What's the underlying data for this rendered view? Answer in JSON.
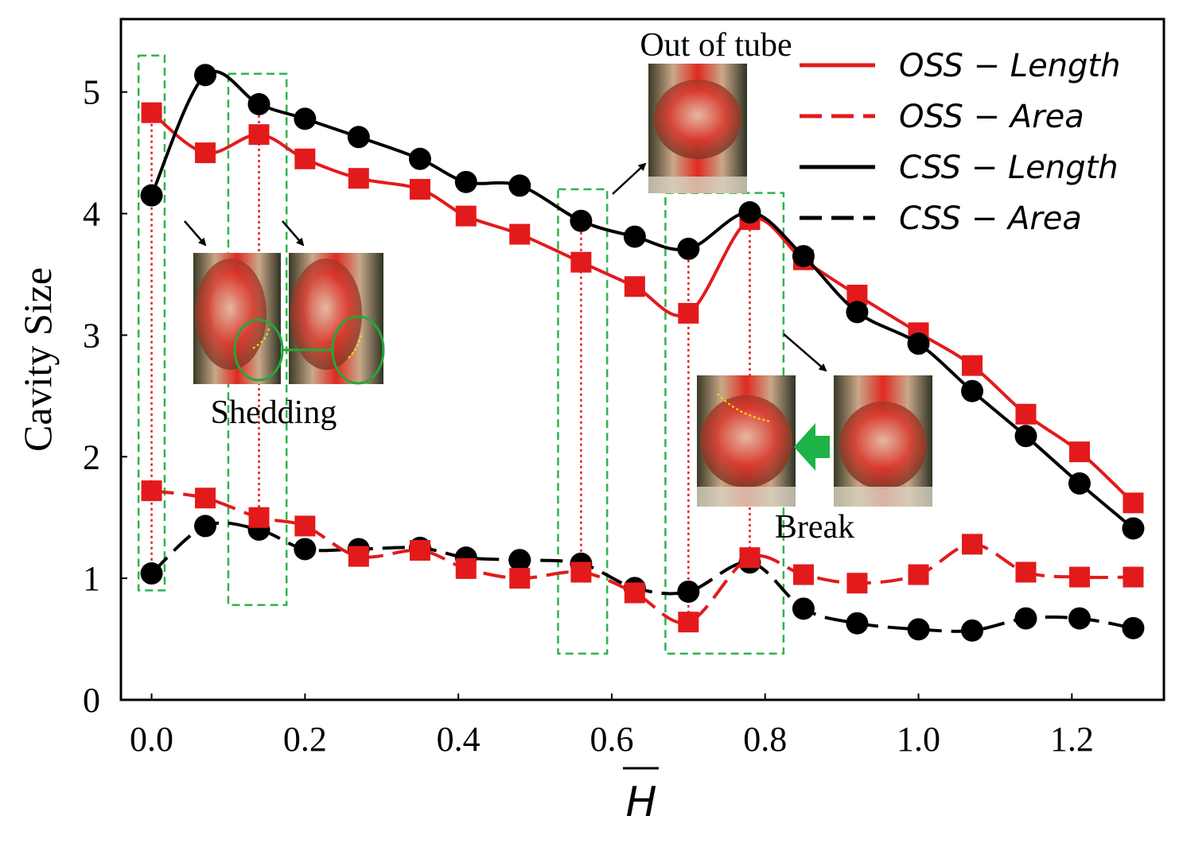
{
  "chart_data": {
    "type": "line",
    "title": "",
    "xlabel": "H",
    "ylabel": "Cavity Size",
    "xlim": [
      -0.04,
      1.32
    ],
    "ylim": [
      0,
      5.6
    ],
    "x_ticks": [
      0.0,
      0.2,
      0.4,
      0.6,
      0.8,
      1.0,
      1.2
    ],
    "x_tick_labels": [
      "0.0",
      "0.2",
      "0.4",
      "0.6",
      "0.8",
      "1.0",
      "1.2"
    ],
    "y_ticks": [
      0,
      1,
      2,
      3,
      4,
      5
    ],
    "y_tick_labels": [
      "0",
      "1",
      "2",
      "3",
      "4",
      "5"
    ],
    "grid": false,
    "legend_position": "top-right",
    "x": [
      0.0,
      0.07,
      0.14,
      0.2,
      0.27,
      0.35,
      0.41,
      0.48,
      0.56,
      0.63,
      0.7,
      0.78,
      0.85,
      0.92,
      1.0,
      1.07,
      1.14,
      1.21,
      1.28
    ],
    "series": [
      {
        "name": "OSS – Length",
        "label": "OSS − Length",
        "color": "#e31a1c",
        "style": "solid",
        "marker": "square",
        "values": [
          4.83,
          4.5,
          4.65,
          4.45,
          4.29,
          4.2,
          3.98,
          3.83,
          3.6,
          3.4,
          3.18,
          3.95,
          3.62,
          3.33,
          3.02,
          2.75,
          2.35,
          2.04,
          1.62
        ]
      },
      {
        "name": "OSS – Area",
        "label": "OSS − Area",
        "color": "#e31a1c",
        "style": "dashed",
        "marker": "square",
        "values": [
          1.72,
          1.66,
          1.5,
          1.43,
          1.18,
          1.23,
          1.08,
          1.0,
          1.05,
          0.88,
          0.64,
          1.17,
          1.03,
          0.96,
          1.03,
          1.28,
          1.05,
          1.01,
          1.01
        ]
      },
      {
        "name": "CSS – Length",
        "label": "CSS − Length",
        "color": "#000000",
        "style": "solid",
        "marker": "circle",
        "values": [
          4.15,
          5.14,
          4.9,
          4.78,
          4.63,
          4.45,
          4.26,
          4.23,
          3.94,
          3.81,
          3.71,
          4.01,
          3.65,
          3.19,
          2.93,
          2.54,
          2.17,
          1.78,
          1.41
        ]
      },
      {
        "name": "CSS – Area",
        "label": "CSS − Area",
        "color": "#000000",
        "style": "dashed",
        "marker": "circle",
        "values": [
          1.04,
          1.43,
          1.4,
          1.24,
          1.24,
          1.25,
          1.17,
          1.15,
          1.12,
          0.92,
          0.89,
          1.13,
          0.75,
          0.63,
          0.58,
          0.57,
          0.67,
          0.67,
          0.59
        ]
      }
    ],
    "vlines_x": [
      0.0,
      0.14,
      0.56,
      0.7,
      0.78
    ],
    "highlight_boxes": [
      {
        "x0": -0.017,
        "x1": 0.017,
        "y0": 0.9,
        "y1": 5.3
      },
      {
        "x0": 0.1,
        "x1": 0.176,
        "y0": 0.78,
        "y1": 5.15
      },
      {
        "x0": 0.53,
        "x1": 0.594,
        "y0": 0.38,
        "y1": 4.2
      },
      {
        "x0": 0.67,
        "x1": 0.824,
        "y0": 0.38,
        "y1": 4.17
      }
    ],
    "annotations": [
      {
        "id": "out-of-tube",
        "text": "Out of tube"
      },
      {
        "id": "shedding",
        "text": "Shedding"
      },
      {
        "id": "break",
        "text": "Break"
      }
    ]
  }
}
